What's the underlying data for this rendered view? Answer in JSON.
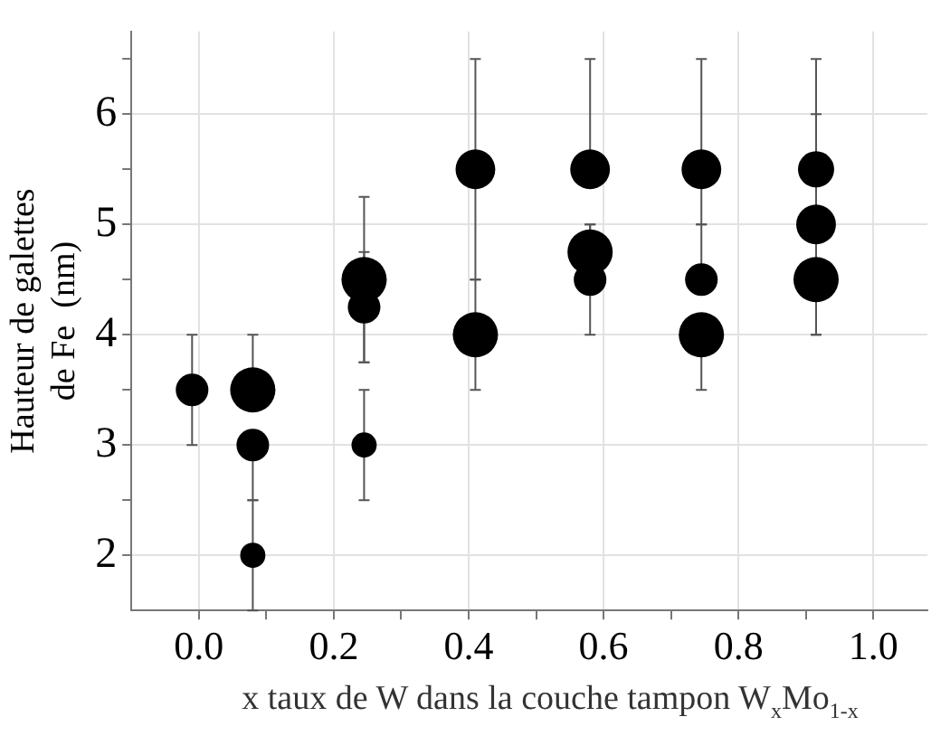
{
  "chart_data": {
    "type": "bubble",
    "xlabel": "x taux de W dans la couche tampon W$_{x}$Mo$_{1-x}$",
    "ylabel": "Hauteur de galettes\nde Fe  (nm)",
    "xlim": [
      -0.1,
      1.08
    ],
    "ylim": [
      1.5,
      6.75
    ],
    "xticks": [
      {
        "value": 0,
        "label": "0.0"
      },
      {
        "value": 0.1,
        "label": null
      },
      {
        "value": 0.2,
        "label": "0.2"
      },
      {
        "value": 0.3,
        "label": null
      },
      {
        "value": 0.4,
        "label": "0.4"
      },
      {
        "value": 0.5,
        "label": null
      },
      {
        "value": 0.6,
        "label": "0.6"
      },
      {
        "value": 0.7,
        "label": null
      },
      {
        "value": 0.8,
        "label": "0.8"
      },
      {
        "value": 0.9,
        "label": null
      },
      {
        "value": 1,
        "label": "1.0"
      }
    ],
    "yticks": [
      {
        "value": 2,
        "label": "2"
      },
      {
        "value": 2.5,
        "label": null
      },
      {
        "value": 3,
        "label": "3"
      },
      {
        "value": 3.5,
        "label": null
      },
      {
        "value": 4,
        "label": "4"
      },
      {
        "value": 4.5,
        "label": null
      },
      {
        "value": 5,
        "label": "5"
      },
      {
        "value": 5.5,
        "label": null
      },
      {
        "value": 6,
        "label": "6"
      },
      {
        "value": 6.5,
        "label": null
      }
    ],
    "grid": true,
    "legend": false,
    "series": [
      {
        "color": "#000000",
        "x": [
          -0.01,
          0.08,
          0.08,
          0.08,
          0.245,
          0.245,
          0.245,
          0.41,
          0.41,
          0.58,
          0.58,
          0.58,
          0.745,
          0.745,
          0.745,
          0.915,
          0.915,
          0.915
        ],
        "values": [
          3.5,
          3.5,
          3.0,
          2.0,
          4.5,
          4.25,
          3.0,
          5.5,
          4.0,
          5.5,
          4.75,
          4.5,
          5.5,
          4.5,
          4.0,
          5.5,
          5.0,
          4.5
        ],
        "sizes": [
          0.52,
          1,
          0.52,
          0.31,
          1,
          0.52,
          0.31,
          0.77,
          1,
          0.77,
          1,
          0.52,
          0.77,
          0.52,
          1,
          0.64,
          0.77,
          1
        ],
        "errors": [
          [
            3,
            4
          ],
          [
            3.5,
            4
          ],
          [
            2.5,
            3
          ],
          [
            1.5,
            2.5
          ],
          [
            3.75,
            5.25
          ],
          [
            3.75,
            4.75
          ],
          [
            2.5,
            3.5
          ],
          [
            4.5,
            6.5
          ],
          [
            3.5,
            4.5
          ],
          [
            5.5,
            6.5
          ],
          [
            4.75,
            5
          ],
          [
            4,
            5
          ],
          [
            5,
            6.5
          ],
          [
            4.5,
            5
          ],
          [
            3.5,
            4
          ],
          [
            5.5,
            6.5
          ],
          [
            4,
            6
          ],
          [
            4,
            4.5
          ]
        ]
      }
    ]
  }
}
